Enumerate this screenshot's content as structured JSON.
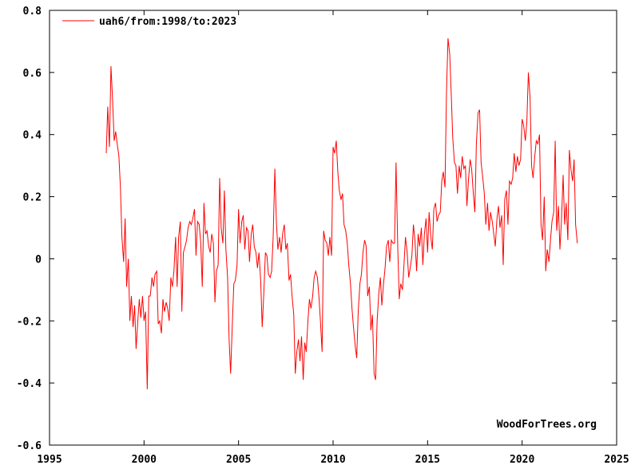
{
  "chart_data": {
    "type": "line",
    "title": "",
    "xlabel": "",
    "ylabel": "",
    "xlim": [
      1995,
      2025
    ],
    "ylim": [
      -0.6,
      0.8
    ],
    "x_ticks": [
      1995,
      2000,
      2005,
      2010,
      2015,
      2020,
      2025
    ],
    "y_ticks": [
      -0.6,
      -0.4,
      -0.2,
      0,
      0.2,
      0.4,
      0.6,
      0.8
    ],
    "x_tick_labels": [
      "1995",
      "2000",
      "2005",
      "2010",
      "2015",
      "2020",
      "2025"
    ],
    "y_tick_labels": [
      "-0.6",
      "-0.4",
      "-0.2",
      "0",
      "0.2",
      "0.4",
      "0.6",
      "0.8"
    ],
    "grid": false,
    "legend_position": "top-left",
    "credit": "WoodForTrees.org",
    "series": [
      {
        "name": "uah6/from:1998/to:2023",
        "color": "#ff0000",
        "x": [
          1998.0,
          1998.08,
          1998.17,
          1998.25,
          1998.33,
          1998.42,
          1998.5,
          1998.58,
          1998.67,
          1998.75,
          1998.83,
          1998.92,
          1999.0,
          1999.08,
          1999.17,
          1999.25,
          1999.33,
          1999.42,
          1999.5,
          1999.58,
          1999.67,
          1999.75,
          1999.83,
          1999.92,
          2000.0,
          2000.08,
          2000.17,
          2000.25,
          2000.33,
          2000.42,
          2000.5,
          2000.58,
          2000.67,
          2000.75,
          2000.83,
          2000.92,
          2001.0,
          2001.08,
          2001.17,
          2001.25,
          2001.33,
          2001.42,
          2001.5,
          2001.58,
          2001.67,
          2001.75,
          2001.83,
          2001.92,
          2002.0,
          2002.08,
          2002.17,
          2002.25,
          2002.33,
          2002.42,
          2002.5,
          2002.58,
          2002.67,
          2002.75,
          2002.83,
          2002.92,
          2003.0,
          2003.08,
          2003.17,
          2003.25,
          2003.33,
          2003.42,
          2003.5,
          2003.58,
          2003.67,
          2003.75,
          2003.83,
          2003.92,
          2004.0,
          2004.08,
          2004.17,
          2004.25,
          2004.33,
          2004.42,
          2004.5,
          2004.58,
          2004.67,
          2004.75,
          2004.83,
          2004.92,
          2005.0,
          2005.08,
          2005.17,
          2005.25,
          2005.33,
          2005.42,
          2005.5,
          2005.58,
          2005.67,
          2005.75,
          2005.83,
          2005.92,
          2006.0,
          2006.08,
          2006.17,
          2006.25,
          2006.33,
          2006.42,
          2006.5,
          2006.58,
          2006.67,
          2006.75,
          2006.83,
          2006.92,
          2007.0,
          2007.08,
          2007.17,
          2007.25,
          2007.33,
          2007.42,
          2007.5,
          2007.58,
          2007.67,
          2007.75,
          2007.83,
          2007.92,
          2008.0,
          2008.08,
          2008.17,
          2008.25,
          2008.33,
          2008.42,
          2008.5,
          2008.58,
          2008.67,
          2008.75,
          2008.83,
          2008.92,
          2009.0,
          2009.08,
          2009.17,
          2009.25,
          2009.33,
          2009.42,
          2009.5,
          2009.58,
          2009.67,
          2009.75,
          2009.83,
          2009.92,
          2010.0,
          2010.08,
          2010.17,
          2010.25,
          2010.33,
          2010.42,
          2010.5,
          2010.58,
          2010.67,
          2010.75,
          2010.83,
          2010.92,
          2011.0,
          2011.08,
          2011.17,
          2011.25,
          2011.33,
          2011.42,
          2011.5,
          2011.58,
          2011.67,
          2011.75,
          2011.83,
          2011.92,
          2012.0,
          2012.08,
          2012.17,
          2012.25,
          2012.33,
          2012.42,
          2012.5,
          2012.58,
          2012.67,
          2012.75,
          2012.83,
          2012.92,
          2013.0,
          2013.08,
          2013.17,
          2013.25,
          2013.33,
          2013.42,
          2013.5,
          2013.58,
          2013.67,
          2013.75,
          2013.83,
          2013.92,
          2014.0,
          2014.08,
          2014.17,
          2014.25,
          2014.33,
          2014.42,
          2014.5,
          2014.58,
          2014.67,
          2014.75,
          2014.83,
          2014.92,
          2015.0,
          2015.08,
          2015.17,
          2015.25,
          2015.33,
          2015.42,
          2015.5,
          2015.58,
          2015.67,
          2015.75,
          2015.83,
          2015.92,
          2016.0,
          2016.08,
          2016.17,
          2016.25,
          2016.33,
          2016.42,
          2016.5,
          2016.58,
          2016.67,
          2016.75,
          2016.83,
          2016.92,
          2017.0,
          2017.08,
          2017.17,
          2017.25,
          2017.33,
          2017.42,
          2017.5,
          2017.58,
          2017.67,
          2017.75,
          2017.83,
          2017.92,
          2018.0,
          2018.08,
          2018.17,
          2018.25,
          2018.33,
          2018.42,
          2018.5,
          2018.58,
          2018.67,
          2018.75,
          2018.83,
          2018.92,
          2019.0,
          2019.08,
          2019.17,
          2019.25,
          2019.33,
          2019.42,
          2019.5,
          2019.58,
          2019.67,
          2019.75,
          2019.83,
          2019.92,
          2020.0,
          2020.08,
          2020.17,
          2020.25,
          2020.33,
          2020.42,
          2020.5,
          2020.58,
          2020.67,
          2020.75,
          2020.83,
          2020.92,
          2021.0,
          2021.08,
          2021.17,
          2021.25,
          2021.33,
          2021.42,
          2021.5,
          2021.58,
          2021.67,
          2021.75,
          2021.83,
          2021.92,
          2022.0,
          2022.08,
          2022.17,
          2022.25,
          2022.33,
          2022.42,
          2022.5,
          2022.58,
          2022.67,
          2022.75,
          2022.83,
          2022.92
        ],
        "y": [
          0.34,
          0.49,
          0.36,
          0.62,
          0.52,
          0.38,
          0.41,
          0.37,
          0.33,
          0.23,
          0.07,
          -0.01,
          0.13,
          -0.09,
          0.0,
          -0.2,
          -0.12,
          -0.22,
          -0.15,
          -0.29,
          -0.2,
          -0.13,
          -0.19,
          -0.12,
          -0.2,
          -0.17,
          -0.42,
          -0.12,
          -0.12,
          -0.06,
          -0.09,
          -0.05,
          -0.04,
          -0.21,
          -0.2,
          -0.24,
          -0.13,
          -0.17,
          -0.14,
          -0.16,
          -0.2,
          -0.06,
          -0.09,
          -0.04,
          0.07,
          -0.09,
          0.07,
          0.12,
          -0.17,
          0.02,
          0.04,
          0.06,
          0.1,
          0.12,
          0.11,
          0.13,
          0.16,
          0.01,
          0.12,
          0.11,
          0.05,
          -0.09,
          0.18,
          0.08,
          0.09,
          0.04,
          0.02,
          0.08,
          0.05,
          -0.14,
          -0.04,
          -0.02,
          0.26,
          0.1,
          0.05,
          0.22,
          0.03,
          -0.06,
          -0.26,
          -0.37,
          -0.21,
          -0.08,
          -0.07,
          -0.02,
          0.16,
          0.05,
          0.12,
          0.14,
          0.03,
          0.1,
          0.09,
          -0.01,
          0.08,
          0.11,
          0.04,
          0.02,
          -0.03,
          0.02,
          -0.07,
          -0.22,
          -0.12,
          0.02,
          0.01,
          -0.05,
          -0.06,
          -0.04,
          0.07,
          0.29,
          0.12,
          0.03,
          0.07,
          0.02,
          0.08,
          0.11,
          0.03,
          0.05,
          -0.07,
          -0.05,
          -0.12,
          -0.18,
          -0.37,
          -0.3,
          -0.26,
          -0.33,
          -0.25,
          -0.39,
          -0.27,
          -0.3,
          -0.2,
          -0.13,
          -0.16,
          -0.12,
          -0.06,
          -0.04,
          -0.06,
          -0.12,
          -0.2,
          -0.3,
          0.09,
          0.06,
          0.05,
          0.01,
          0.07,
          0.01,
          0.36,
          0.34,
          0.38,
          0.28,
          0.22,
          0.19,
          0.21,
          0.11,
          0.09,
          0.05,
          -0.02,
          -0.08,
          -0.16,
          -0.22,
          -0.28,
          -0.32,
          -0.17,
          -0.08,
          -0.05,
          0.02,
          0.06,
          0.04,
          -0.12,
          -0.09,
          -0.23,
          -0.18,
          -0.37,
          -0.39,
          -0.2,
          -0.11,
          -0.06,
          -0.15,
          -0.08,
          -0.03,
          0.04,
          0.06,
          -0.01,
          0.06,
          0.05,
          0.05,
          0.31,
          0.04,
          -0.13,
          -0.08,
          -0.1,
          -0.02,
          0.07,
          0.02,
          -0.06,
          -0.03,
          0.01,
          0.11,
          0.06,
          -0.04,
          0.08,
          0.04,
          0.1,
          -0.02,
          0.08,
          0.13,
          0.02,
          0.15,
          0.07,
          0.03,
          0.16,
          0.18,
          0.12,
          0.14,
          0.15,
          0.25,
          0.28,
          0.23,
          0.54,
          0.71,
          0.66,
          0.53,
          0.39,
          0.31,
          0.3,
          0.21,
          0.3,
          0.26,
          0.33,
          0.29,
          0.3,
          0.17,
          0.26,
          0.32,
          0.29,
          0.21,
          0.15,
          0.37,
          0.47,
          0.48,
          0.31,
          0.26,
          0.21,
          0.11,
          0.18,
          0.09,
          0.15,
          0.12,
          0.08,
          0.04,
          0.13,
          0.17,
          0.1,
          0.14,
          -0.02,
          0.19,
          0.22,
          0.11,
          0.25,
          0.24,
          0.26,
          0.34,
          0.28,
          0.33,
          0.3,
          0.32,
          0.45,
          0.43,
          0.38,
          0.44,
          0.6,
          0.52,
          0.3,
          0.26,
          0.33,
          0.38,
          0.37,
          0.4,
          0.11,
          0.06,
          0.2,
          -0.04,
          0.03,
          -0.01,
          0.06,
          0.12,
          0.15,
          0.38,
          0.09,
          0.17,
          0.03,
          0.12,
          0.27,
          0.11,
          0.18,
          0.06,
          0.35,
          0.29,
          0.25,
          0.32,
          0.11,
          0.05
        ]
      }
    ]
  }
}
